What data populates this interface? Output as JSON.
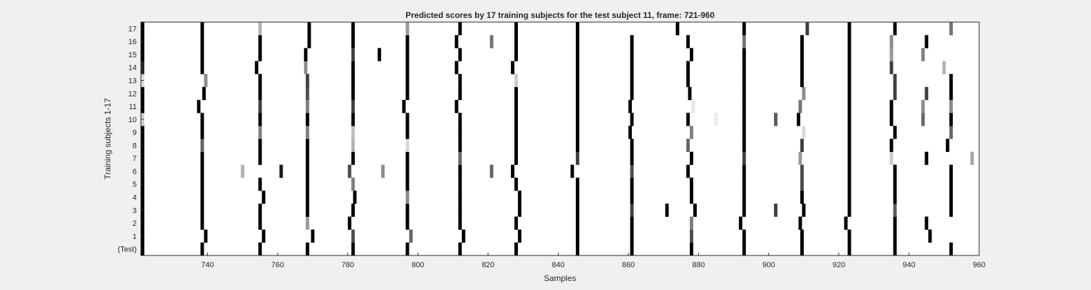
{
  "chart_data": {
    "type": "heatmap",
    "title": "Predicted scores by 17 training subjects for the test subject 11, frame: 721-960",
    "xlabel": "Samples",
    "ylabel": "Training subjects 1-17",
    "xlim": [
      721,
      960
    ],
    "xticks": [
      740,
      760,
      780,
      800,
      820,
      840,
      860,
      880,
      900,
      920,
      940,
      960
    ],
    "row_labels": [
      "(Test)",
      "1",
      "2",
      "3",
      "4",
      "5",
      "6",
      "7",
      "8",
      "9",
      "10",
      "11",
      "12",
      "13",
      "14",
      "15",
      "16",
      "17"
    ],
    "value_range": [
      0,
      1
    ],
    "colormap": "gray (white = 0, black = 1)",
    "background": "#ffffff",
    "rows": [
      {
        "label": "(Test)",
        "marks": [
          [
            721.5,
            1
          ],
          [
            738.5,
            1
          ],
          [
            755,
            1
          ],
          [
            768.5,
            1
          ],
          [
            781.5,
            1
          ],
          [
            797,
            1
          ],
          [
            812,
            1
          ],
          [
            828,
            1
          ],
          [
            845.5,
            1
          ],
          [
            861,
            1
          ],
          [
            878,
            1
          ],
          [
            893,
            1
          ],
          [
            909.5,
            1
          ],
          [
            923,
            1
          ],
          [
            936,
            1
          ],
          [
            952,
            1
          ]
        ]
      },
      {
        "label": "1",
        "marks": [
          [
            721.5,
            1
          ],
          [
            739.5,
            1
          ],
          [
            756,
            1
          ],
          [
            770,
            1
          ],
          [
            781.5,
            0.7
          ],
          [
            798,
            0.6
          ],
          [
            813,
            1
          ],
          [
            829,
            1
          ],
          [
            845.5,
            1
          ],
          [
            861,
            1
          ],
          [
            878,
            0.7
          ],
          [
            893,
            1
          ],
          [
            909.5,
            1
          ],
          [
            923,
            1
          ],
          [
            936,
            1
          ],
          [
            946,
            1
          ]
        ]
      },
      {
        "label": "2",
        "marks": [
          [
            721.5,
            1
          ],
          [
            738.5,
            1
          ],
          [
            755,
            1
          ],
          [
            768.5,
            0.4
          ],
          [
            780.5,
            1
          ],
          [
            797,
            1
          ],
          [
            812,
            1
          ],
          [
            828,
            1
          ],
          [
            845.5,
            1
          ],
          [
            861,
            1
          ],
          [
            878,
            0.5
          ],
          [
            892,
            1
          ],
          [
            909,
            1
          ],
          [
            922,
            1
          ],
          [
            936,
            1
          ],
          [
            945,
            1
          ]
        ]
      },
      {
        "label": "3",
        "marks": [
          [
            721.5,
            1
          ],
          [
            738.5,
            1
          ],
          [
            755,
            1
          ],
          [
            768.5,
            1
          ],
          [
            781.5,
            1
          ],
          [
            797,
            1
          ],
          [
            812,
            1
          ],
          [
            829,
            1
          ],
          [
            845.5,
            1
          ],
          [
            861,
            0.75
          ],
          [
            871,
            1
          ],
          [
            879,
            1
          ],
          [
            893,
            1
          ],
          [
            902,
            0.75
          ],
          [
            910,
            1
          ],
          [
            923,
            1
          ],
          [
            936,
            0.65
          ],
          [
            952,
            1
          ]
        ]
      },
      {
        "label": "4",
        "marks": [
          [
            721.5,
            1
          ],
          [
            738.5,
            1
          ],
          [
            756,
            1
          ],
          [
            768.5,
            1
          ],
          [
            782,
            1
          ],
          [
            797,
            0.45
          ],
          [
            812,
            1
          ],
          [
            829,
            1
          ],
          [
            845.5,
            1
          ],
          [
            861,
            1
          ],
          [
            878,
            1
          ],
          [
            893,
            1
          ],
          [
            909.5,
            1
          ],
          [
            923,
            1
          ],
          [
            936,
            1
          ],
          [
            952,
            1
          ]
        ]
      },
      {
        "label": "5",
        "marks": [
          [
            721.5,
            1
          ],
          [
            738.5,
            1
          ],
          [
            755,
            1
          ],
          [
            768.5,
            1
          ],
          [
            781.5,
            0.5
          ],
          [
            797,
            1
          ],
          [
            812,
            1
          ],
          [
            828,
            1
          ],
          [
            845.5,
            1
          ],
          [
            861,
            1
          ],
          [
            878,
            1
          ],
          [
            893,
            1
          ],
          [
            909.5,
            0.7
          ],
          [
            923,
            1
          ],
          [
            936,
            1
          ],
          [
            952,
            1
          ]
        ]
      },
      {
        "label": "6",
        "marks": [
          [
            721.5,
            1
          ],
          [
            738.5,
            1
          ],
          [
            750,
            0.3
          ],
          [
            761,
            0.9
          ],
          [
            768.5,
            1
          ],
          [
            780.5,
            0.7
          ],
          [
            790,
            0.45
          ],
          [
            797,
            1
          ],
          [
            812,
            1
          ],
          [
            821,
            0.6
          ],
          [
            827,
            1
          ],
          [
            844,
            1
          ],
          [
            861,
            0.7
          ],
          [
            877,
            1
          ],
          [
            893,
            1
          ],
          [
            909.5,
            0.7
          ],
          [
            923,
            1
          ],
          [
            936,
            1
          ],
          [
            952,
            1
          ]
        ]
      },
      {
        "label": "7",
        "marks": [
          [
            721.5,
            1
          ],
          [
            738.5,
            1
          ],
          [
            755,
            1
          ],
          [
            768.5,
            1
          ],
          [
            781.5,
            1
          ],
          [
            797,
            1
          ],
          [
            812,
            0.6
          ],
          [
            828,
            1
          ],
          [
            845.5,
            0.75
          ],
          [
            861,
            1
          ],
          [
            878,
            1
          ],
          [
            893,
            0.75
          ],
          [
            909,
            0.4
          ],
          [
            923,
            1
          ],
          [
            935,
            0.2
          ],
          [
            945,
            1
          ],
          [
            958,
            0.35
          ]
        ]
      },
      {
        "label": "8",
        "marks": [
          [
            721.5,
            1
          ],
          [
            738.5,
            0.6
          ],
          [
            755,
            1
          ],
          [
            768.5,
            1
          ],
          [
            781.5,
            0.3
          ],
          [
            797,
            0.15
          ],
          [
            812,
            1
          ],
          [
            828,
            1
          ],
          [
            845.5,
            1
          ],
          [
            861,
            1
          ],
          [
            877,
            0.6
          ],
          [
            893,
            1
          ],
          [
            909.5,
            0.75
          ],
          [
            923,
            1
          ],
          [
            935,
            1
          ],
          [
            951,
            1
          ]
        ]
      },
      {
        "label": "9",
        "marks": [
          [
            721.5,
            1
          ],
          [
            738.5,
            1
          ],
          [
            755,
            0.5
          ],
          [
            768.5,
            0.5
          ],
          [
            781.5,
            0.25
          ],
          [
            797,
            1
          ],
          [
            812,
            1
          ],
          [
            828,
            1
          ],
          [
            845.5,
            1
          ],
          [
            860.5,
            1
          ],
          [
            878,
            0.5
          ],
          [
            893,
            1
          ],
          [
            910,
            0.15
          ],
          [
            923,
            1
          ],
          [
            936,
            1
          ],
          [
            952,
            0.6
          ]
        ]
      },
      {
        "label": "10",
        "marks": [
          [
            721,
            0.2
          ],
          [
            738.5,
            1
          ],
          [
            755,
            1
          ],
          [
            768.5,
            1
          ],
          [
            781.5,
            1
          ],
          [
            797,
            1
          ],
          [
            812,
            1
          ],
          [
            828,
            1
          ],
          [
            845.5,
            1
          ],
          [
            861,
            1
          ],
          [
            877,
            1
          ],
          [
            885,
            0.08
          ],
          [
            893,
            1
          ],
          [
            902,
            0.65
          ],
          [
            908.5,
            1
          ],
          [
            923,
            1
          ],
          [
            935,
            1
          ],
          [
            944,
            0.6
          ],
          [
            952,
            1
          ]
        ]
      },
      {
        "label": "11",
        "marks": [
          [
            721,
            1
          ],
          [
            737.5,
            1
          ],
          [
            755,
            0.75
          ],
          [
            768.5,
            0.5
          ],
          [
            781.5,
            0.75
          ],
          [
            796,
            1
          ],
          [
            811,
            1
          ],
          [
            828,
            1
          ],
          [
            845.5,
            1
          ],
          [
            860.5,
            1
          ],
          [
            878.5,
            0.1
          ],
          [
            893,
            1
          ],
          [
            909,
            0.55
          ],
          [
            923,
            1
          ],
          [
            935,
            1
          ],
          [
            944,
            0.45
          ],
          [
            952,
            0.45
          ]
        ]
      },
      {
        "label": "12",
        "marks": [
          [
            721.5,
            1
          ],
          [
            739,
            1
          ],
          [
            755,
            1
          ],
          [
            768.5,
            0.7
          ],
          [
            781.5,
            1
          ],
          [
            797,
            1
          ],
          [
            812,
            1
          ],
          [
            828,
            1
          ],
          [
            845.5,
            1
          ],
          [
            861,
            1
          ],
          [
            877.5,
            1
          ],
          [
            893,
            1
          ],
          [
            910,
            0.45
          ],
          [
            923,
            1
          ],
          [
            936,
            0.75
          ],
          [
            945,
            0.75
          ],
          [
            952,
            1
          ]
        ]
      },
      {
        "label": "13",
        "marks": [
          [
            721,
            0.15
          ],
          [
            739.5,
            0.45
          ],
          [
            755,
            1
          ],
          [
            768.5,
            0.75
          ],
          [
            781.5,
            1
          ],
          [
            797,
            1
          ],
          [
            812,
            1
          ],
          [
            828,
            0.2
          ],
          [
            845.5,
            1
          ],
          [
            861,
            1
          ],
          [
            877,
            1
          ],
          [
            893,
            1
          ],
          [
            909.5,
            1
          ],
          [
            923,
            1
          ],
          [
            936,
            0.75
          ],
          [
            952,
            1
          ]
        ]
      },
      {
        "label": "14",
        "marks": [
          [
            721,
            0.85
          ],
          [
            738.5,
            1
          ],
          [
            754,
            1
          ],
          [
            768,
            0.45
          ],
          [
            781.5,
            1
          ],
          [
            797,
            1
          ],
          [
            811,
            1
          ],
          [
            827,
            1
          ],
          [
            845.5,
            1
          ],
          [
            861,
            1
          ],
          [
            877,
            1
          ],
          [
            893,
            1
          ],
          [
            909.5,
            1
          ],
          [
            923,
            1
          ],
          [
            935,
            0.75
          ],
          [
            950,
            0.3
          ]
        ]
      },
      {
        "label": "15",
        "marks": [
          [
            721.5,
            1
          ],
          [
            738.5,
            1
          ],
          [
            755,
            1
          ],
          [
            768,
            1
          ],
          [
            781.5,
            0.75
          ],
          [
            789,
            1
          ],
          [
            797,
            1
          ],
          [
            812,
            1
          ],
          [
            828,
            1
          ],
          [
            845.5,
            1
          ],
          [
            861,
            1
          ],
          [
            878,
            1
          ],
          [
            893,
            1
          ],
          [
            909.5,
            1
          ],
          [
            923,
            1
          ],
          [
            935,
            0.4
          ],
          [
            944,
            0.5
          ]
        ]
      },
      {
        "label": "16",
        "marks": [
          [
            721.5,
            1
          ],
          [
            738.5,
            1
          ],
          [
            755,
            1
          ],
          [
            769,
            1
          ],
          [
            781.5,
            1
          ],
          [
            797,
            1
          ],
          [
            811,
            1
          ],
          [
            821,
            0.55
          ],
          [
            828,
            1
          ],
          [
            845.5,
            1
          ],
          [
            861,
            1
          ],
          [
            877,
            1
          ],
          [
            893,
            0.55
          ],
          [
            909.5,
            1
          ],
          [
            923,
            1
          ],
          [
            935,
            0.45
          ],
          [
            945,
            1
          ]
        ]
      },
      {
        "label": "17",
        "marks": [
          [
            721.5,
            1
          ],
          [
            738.5,
            1
          ],
          [
            755,
            0.3
          ],
          [
            769,
            1
          ],
          [
            781.5,
            1
          ],
          [
            797,
            0.4
          ],
          [
            812,
            1
          ],
          [
            828,
            1
          ],
          [
            845.5,
            1
          ],
          [
            874,
            1
          ],
          [
            893,
            1
          ],
          [
            911,
            0.75
          ],
          [
            923,
            1
          ],
          [
            936,
            1
          ],
          [
            952,
            0.55
          ]
        ]
      }
    ]
  }
}
